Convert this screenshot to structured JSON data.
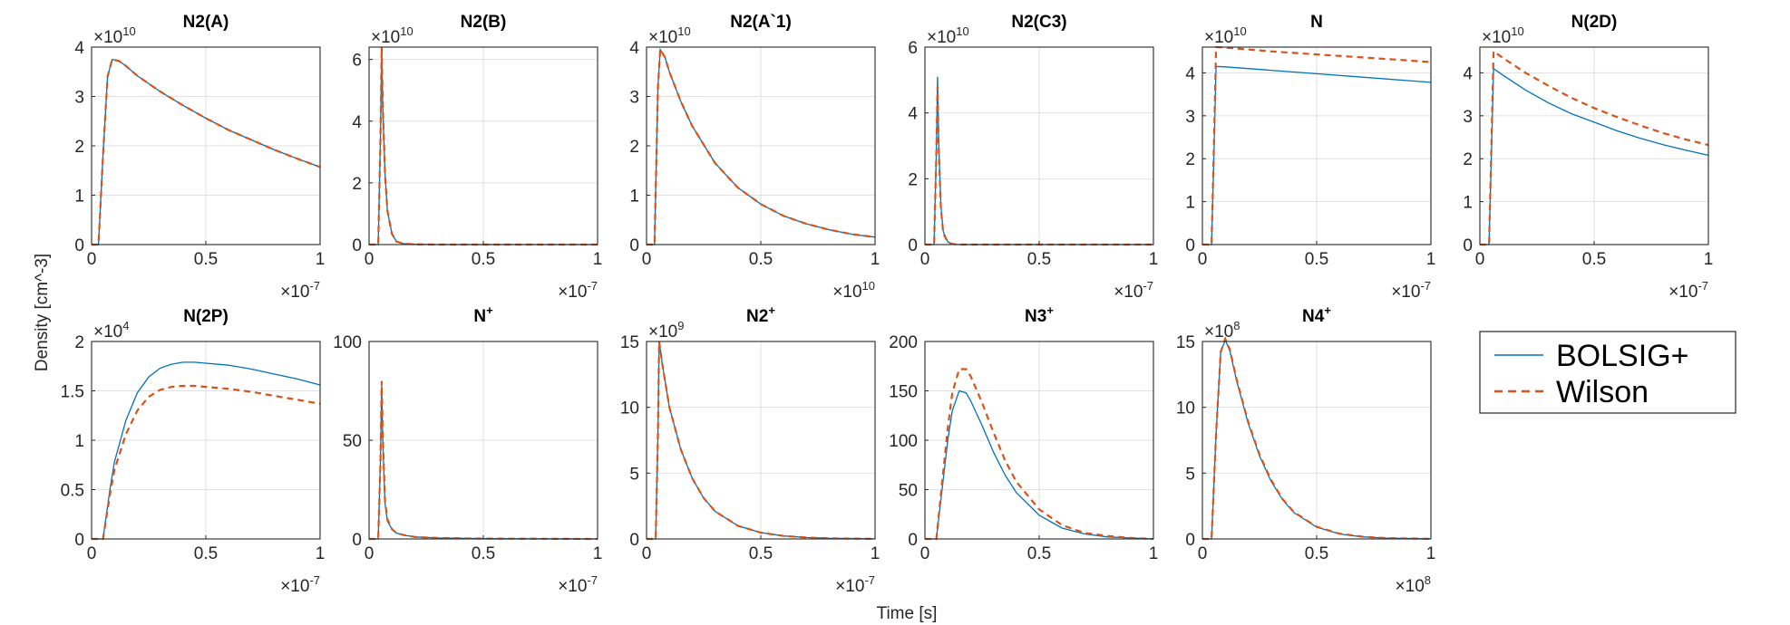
{
  "figure": {
    "xlabel": "Time [s]",
    "ylabel": "Density [cm^-3]",
    "colors": {
      "bolsig": "#0072BD",
      "wilson": "#D95319",
      "grid": "#e1e1e1",
      "axis": "#262626"
    }
  },
  "legend": {
    "position": "right of second row",
    "entries": [
      {
        "label": "BOLSIG+",
        "style": "solid",
        "color": "#0072BD"
      },
      {
        "label": "Wilson",
        "style": "dashed",
        "color": "#D95319"
      }
    ]
  },
  "chart_data": [
    {
      "type": "line",
      "title": "N2(A)",
      "title_base": "N2(A)",
      "title_sup": "",
      "xlim": [
        0,
        1
      ],
      "x_multiplier": "×10",
      "x_exponent": "-7",
      "ylim": [
        0,
        4
      ],
      "y_multiplier": "×10",
      "y_exponent": "10",
      "xticks": [
        0,
        0.5,
        1
      ],
      "xtick_labels": [
        "0",
        "0.5",
        "1"
      ],
      "yticks": [
        0,
        1,
        2,
        3,
        4
      ],
      "ytick_labels": [
        "0",
        "1",
        "2",
        "3",
        "4"
      ],
      "x": [
        0,
        0.03,
        0.05,
        0.07,
        0.09,
        0.12,
        0.15,
        0.2,
        0.3,
        0.4,
        0.5,
        0.6,
        0.7,
        0.8,
        0.9,
        1.0
      ],
      "series": [
        {
          "name": "BOLSIG+",
          "values": [
            0,
            0,
            1.8,
            3.4,
            3.75,
            3.72,
            3.62,
            3.42,
            3.1,
            2.82,
            2.56,
            2.32,
            2.12,
            1.92,
            1.74,
            1.57
          ]
        },
        {
          "name": "Wilson",
          "values": [
            0,
            0,
            1.8,
            3.4,
            3.75,
            3.72,
            3.62,
            3.42,
            3.1,
            2.82,
            2.56,
            2.32,
            2.12,
            1.92,
            1.74,
            1.57
          ]
        }
      ]
    },
    {
      "type": "line",
      "title": "N2(B)",
      "title_base": "N2(B)",
      "title_sup": "",
      "xlim": [
        0,
        1
      ],
      "x_multiplier": "×10",
      "x_exponent": "-7",
      "ylim": [
        0,
        6.4
      ],
      "y_multiplier": "×10",
      "y_exponent": "10",
      "xticks": [
        0,
        0.5,
        1
      ],
      "xtick_labels": [
        "0",
        "0.5",
        "1"
      ],
      "yticks": [
        0,
        2,
        4,
        6
      ],
      "ytick_labels": [
        "0",
        "2",
        "4",
        "6"
      ],
      "x": [
        0,
        0.04,
        0.05,
        0.055,
        0.06,
        0.07,
        0.08,
        0.1,
        0.12,
        0.15,
        0.2,
        0.3,
        0.5,
        1.0
      ],
      "series": [
        {
          "name": "BOLSIG+",
          "values": [
            0,
            0,
            3.5,
            6.4,
            4.5,
            2.3,
            1.1,
            0.35,
            0.1,
            0.03,
            0.01,
            0,
            0,
            0
          ]
        },
        {
          "name": "Wilson",
          "values": [
            0,
            0,
            3.5,
            6.4,
            4.5,
            2.3,
            1.1,
            0.35,
            0.1,
            0.03,
            0.01,
            0,
            0,
            0
          ]
        }
      ]
    },
    {
      "type": "line",
      "title": "N2(A`1)",
      "title_base": "N2(A`1)",
      "title_sup": "",
      "xlim": [
        0,
        1
      ],
      "x_multiplier": "×10",
      "x_exponent": "10",
      "ylim": [
        0,
        4
      ],
      "y_multiplier": "×10",
      "y_exponent": "10",
      "xticks": [
        0,
        0.5,
        1
      ],
      "xtick_labels": [
        "0",
        "0.5",
        "1"
      ],
      "yticks": [
        0,
        1,
        2,
        3,
        4
      ],
      "ytick_labels": [
        "0",
        "1",
        "2",
        "3",
        "4"
      ],
      "x": [
        0,
        0.035,
        0.05,
        0.06,
        0.08,
        0.1,
        0.15,
        0.2,
        0.3,
        0.4,
        0.5,
        0.6,
        0.7,
        0.8,
        0.9,
        1.0
      ],
      "series": [
        {
          "name": "BOLSIG+",
          "values": [
            0,
            0,
            3.2,
            3.95,
            3.8,
            3.5,
            2.9,
            2.4,
            1.65,
            1.15,
            0.82,
            0.58,
            0.42,
            0.3,
            0.21,
            0.15
          ]
        },
        {
          "name": "Wilson",
          "values": [
            0,
            0,
            3.2,
            3.95,
            3.8,
            3.5,
            2.9,
            2.4,
            1.65,
            1.15,
            0.82,
            0.58,
            0.42,
            0.3,
            0.21,
            0.15
          ]
        }
      ]
    },
    {
      "type": "line",
      "title": "N2(C3)",
      "title_base": "N2(C3)",
      "title_sup": "",
      "xlim": [
        0,
        1
      ],
      "x_multiplier": "×10",
      "x_exponent": "-7",
      "ylim": [
        0,
        6
      ],
      "y_multiplier": "×10",
      "y_exponent": "10",
      "xticks": [
        0,
        0.5,
        1
      ],
      "xtick_labels": [
        "0",
        "0.5",
        "1"
      ],
      "yticks": [
        0,
        2,
        4,
        6
      ],
      "ytick_labels": [
        "0",
        "2",
        "4",
        "6"
      ],
      "x": [
        0,
        0.04,
        0.05,
        0.055,
        0.06,
        0.07,
        0.08,
        0.1,
        0.12,
        0.15,
        0.2,
        1.0
      ],
      "series": [
        {
          "name": "BOLSIG+",
          "values": [
            0,
            0,
            2.8,
            5.1,
            3.2,
            1.2,
            0.4,
            0.08,
            0.02,
            0,
            0,
            0
          ]
        },
        {
          "name": "Wilson",
          "values": [
            0,
            0,
            2.8,
            4.8,
            3.0,
            1.1,
            0.35,
            0.07,
            0.02,
            0,
            0,
            0
          ]
        }
      ]
    },
    {
      "type": "line",
      "title": "N",
      "title_base": "N",
      "title_sup": "",
      "xlim": [
        0,
        1
      ],
      "x_multiplier": "×10",
      "x_exponent": "-7",
      "ylim": [
        0,
        4.6
      ],
      "y_multiplier": "×10",
      "y_exponent": "10",
      "xticks": [
        0,
        0.5,
        1
      ],
      "xtick_labels": [
        "0",
        "0.5",
        "1"
      ],
      "yticks": [
        0,
        1,
        2,
        3,
        4
      ],
      "ytick_labels": [
        "0",
        "1",
        "2",
        "3",
        "4"
      ],
      "x": [
        0,
        0.04,
        0.05,
        0.06,
        0.1,
        0.3,
        0.5,
        0.7,
        0.9,
        1.0
      ],
      "series": [
        {
          "name": "BOLSIG+",
          "values": [
            0,
            0,
            2.0,
            4.15,
            4.14,
            4.06,
            3.98,
            3.9,
            3.82,
            3.78
          ]
        },
        {
          "name": "Wilson",
          "values": [
            0,
            0,
            2.2,
            4.6,
            4.59,
            4.5,
            4.43,
            4.36,
            4.29,
            4.25
          ]
        }
      ]
    },
    {
      "type": "line",
      "title": "N(2D)",
      "title_base": "N(2D)",
      "title_sup": "",
      "xlim": [
        0,
        1
      ],
      "x_multiplier": "×10",
      "x_exponent": "-7",
      "ylim": [
        0,
        4.6
      ],
      "y_multiplier": "×10",
      "y_exponent": "10",
      "xticks": [
        0,
        0.5,
        1
      ],
      "xtick_labels": [
        "0",
        "0.5",
        "1"
      ],
      "yticks": [
        0,
        1,
        2,
        3,
        4
      ],
      "ytick_labels": [
        "0",
        "1",
        "2",
        "3",
        "4"
      ],
      "x": [
        0,
        0.04,
        0.05,
        0.06,
        0.1,
        0.2,
        0.3,
        0.4,
        0.5,
        0.6,
        0.7,
        0.8,
        0.9,
        1.0
      ],
      "series": [
        {
          "name": "BOLSIG+",
          "values": [
            0,
            0,
            2.0,
            4.1,
            3.95,
            3.6,
            3.3,
            3.05,
            2.85,
            2.65,
            2.48,
            2.33,
            2.2,
            2.08
          ]
        },
        {
          "name": "Wilson",
          "values": [
            0,
            0,
            2.2,
            4.5,
            4.35,
            4.0,
            3.7,
            3.42,
            3.18,
            2.97,
            2.78,
            2.6,
            2.45,
            2.32
          ]
        }
      ]
    },
    {
      "type": "line",
      "title": "N(2P)",
      "title_base": "N(2P)",
      "title_sup": "",
      "xlim": [
        0,
        1
      ],
      "x_multiplier": "×10",
      "x_exponent": "-7",
      "ylim": [
        0,
        2
      ],
      "y_multiplier": "×10",
      "y_exponent": "4",
      "xticks": [
        0,
        0.5,
        1
      ],
      "xtick_labels": [
        "0",
        "0.5",
        "1"
      ],
      "yticks": [
        0,
        0.5,
        1,
        1.5,
        2
      ],
      "ytick_labels": [
        "0",
        "0.5",
        "1",
        "1.5",
        "2"
      ],
      "x": [
        0,
        0.05,
        0.08,
        0.1,
        0.15,
        0.2,
        0.25,
        0.3,
        0.35,
        0.4,
        0.45,
        0.5,
        0.6,
        0.7,
        0.8,
        0.9,
        1.0
      ],
      "series": [
        {
          "name": "BOLSIG+",
          "values": [
            0,
            0,
            0.5,
            0.78,
            1.2,
            1.48,
            1.64,
            1.73,
            1.77,
            1.79,
            1.79,
            1.78,
            1.76,
            1.72,
            1.67,
            1.62,
            1.56
          ]
        },
        {
          "name": "Wilson",
          "values": [
            0,
            0,
            0.45,
            0.7,
            1.06,
            1.3,
            1.44,
            1.51,
            1.54,
            1.55,
            1.55,
            1.54,
            1.52,
            1.49,
            1.45,
            1.41,
            1.37
          ]
        }
      ]
    },
    {
      "type": "line",
      "title": "N+",
      "title_base": "N",
      "title_sup": "+",
      "xlim": [
        0,
        1
      ],
      "x_multiplier": "×10",
      "x_exponent": "-7",
      "ylim": [
        0,
        100
      ],
      "y_multiplier": "",
      "y_exponent": "",
      "xticks": [
        0,
        0.5,
        1
      ],
      "xtick_labels": [
        "0",
        "0.5",
        "1"
      ],
      "yticks": [
        0,
        50,
        100
      ],
      "ytick_labels": [
        "0",
        "50",
        "100"
      ],
      "x": [
        0,
        0.04,
        0.05,
        0.055,
        0.06,
        0.07,
        0.08,
        0.1,
        0.12,
        0.15,
        0.2,
        0.3,
        0.5,
        1.0
      ],
      "series": [
        {
          "name": "BOLSIG+",
          "values": [
            0,
            0,
            40,
            78,
            50,
            18,
            9,
            5,
            3,
            2,
            1,
            0.5,
            0.2,
            0
          ]
        },
        {
          "name": "Wilson",
          "values": [
            0,
            0,
            40,
            80,
            52,
            19,
            10,
            5,
            3,
            2,
            1,
            0.5,
            0.2,
            0
          ]
        }
      ]
    },
    {
      "type": "line",
      "title": "N2+",
      "title_base": "N2",
      "title_sup": "+",
      "xlim": [
        0,
        1
      ],
      "x_multiplier": "×10",
      "x_exponent": "-7",
      "ylim": [
        0,
        15
      ],
      "y_multiplier": "×10",
      "y_exponent": "9",
      "xticks": [
        0,
        0.5,
        1
      ],
      "xtick_labels": [
        "0",
        "0.5",
        "1"
      ],
      "yticks": [
        0,
        5,
        10,
        15
      ],
      "ytick_labels": [
        "0",
        "5",
        "10",
        "15"
      ],
      "x": [
        0,
        0.04,
        0.05,
        0.055,
        0.07,
        0.1,
        0.15,
        0.2,
        0.25,
        0.3,
        0.4,
        0.5,
        0.6,
        0.7,
        0.8,
        1.0
      ],
      "series": [
        {
          "name": "BOLSIG+",
          "values": [
            0,
            0,
            8,
            15,
            13.2,
            10,
            6.8,
            4.6,
            3.1,
            2.1,
            1.0,
            0.48,
            0.23,
            0.11,
            0.05,
            0.01
          ]
        },
        {
          "name": "Wilson",
          "values": [
            0,
            0,
            8,
            15,
            13.2,
            10,
            6.8,
            4.6,
            3.1,
            2.1,
            1.0,
            0.48,
            0.23,
            0.11,
            0.05,
            0.01
          ]
        }
      ]
    },
    {
      "type": "line",
      "title": "N3+",
      "title_base": "N3",
      "title_sup": "+",
      "xlim": [
        0,
        1
      ],
      "x_multiplier": "",
      "x_exponent": "",
      "ylim": [
        0,
        200
      ],
      "y_multiplier": "",
      "y_exponent": "",
      "xticks": [
        0,
        0.5,
        1
      ],
      "xtick_labels": [
        "0",
        "0.5",
        "1"
      ],
      "yticks": [
        0,
        50,
        100,
        150,
        200
      ],
      "ytick_labels": [
        "0",
        "50",
        "100",
        "150",
        "200"
      ],
      "x": [
        0,
        0.05,
        0.08,
        0.1,
        0.12,
        0.15,
        0.18,
        0.2,
        0.25,
        0.3,
        0.35,
        0.4,
        0.5,
        0.6,
        0.7,
        0.8,
        0.9,
        1.0
      ],
      "series": [
        {
          "name": "BOLSIG+",
          "values": [
            0,
            0,
            60,
            100,
            130,
            150,
            148,
            140,
            115,
            88,
            65,
            47,
            24,
            11,
            5,
            2,
            1,
            0
          ]
        },
        {
          "name": "Wilson",
          "values": [
            0,
            0,
            68,
            112,
            148,
            172,
            172,
            165,
            138,
            108,
            80,
            58,
            30,
            14,
            6,
            3,
            1,
            0
          ]
        }
      ]
    },
    {
      "type": "line",
      "title": "N4+",
      "title_base": "N4",
      "title_sup": "+",
      "xlim": [
        0,
        1
      ],
      "x_multiplier": "×10",
      "x_exponent": "8",
      "ylim": [
        0,
        15
      ],
      "y_multiplier": "×10",
      "y_exponent": "8",
      "xticks": [
        0,
        0.5,
        1
      ],
      "xtick_labels": [
        "0",
        "0.5",
        "1"
      ],
      "yticks": [
        0,
        5,
        10,
        15
      ],
      "ytick_labels": [
        "0",
        "5",
        "10",
        "15"
      ],
      "x": [
        0,
        0.04,
        0.06,
        0.08,
        0.1,
        0.12,
        0.15,
        0.2,
        0.25,
        0.3,
        0.35,
        0.4,
        0.5,
        0.6,
        0.7,
        0.8,
        1.0
      ],
      "series": [
        {
          "name": "BOLSIG+",
          "values": [
            0,
            0,
            8,
            14.2,
            15.1,
            14.3,
            12,
            8.8,
            6.3,
            4.4,
            3.0,
            2.0,
            0.9,
            0.38,
            0.16,
            0.07,
            0.01
          ]
        },
        {
          "name": "Wilson",
          "values": [
            0,
            0,
            8,
            14.2,
            15.2,
            14.4,
            12.1,
            8.9,
            6.4,
            4.5,
            3.05,
            2.05,
            0.92,
            0.4,
            0.17,
            0.07,
            0.01
          ]
        }
      ]
    }
  ]
}
